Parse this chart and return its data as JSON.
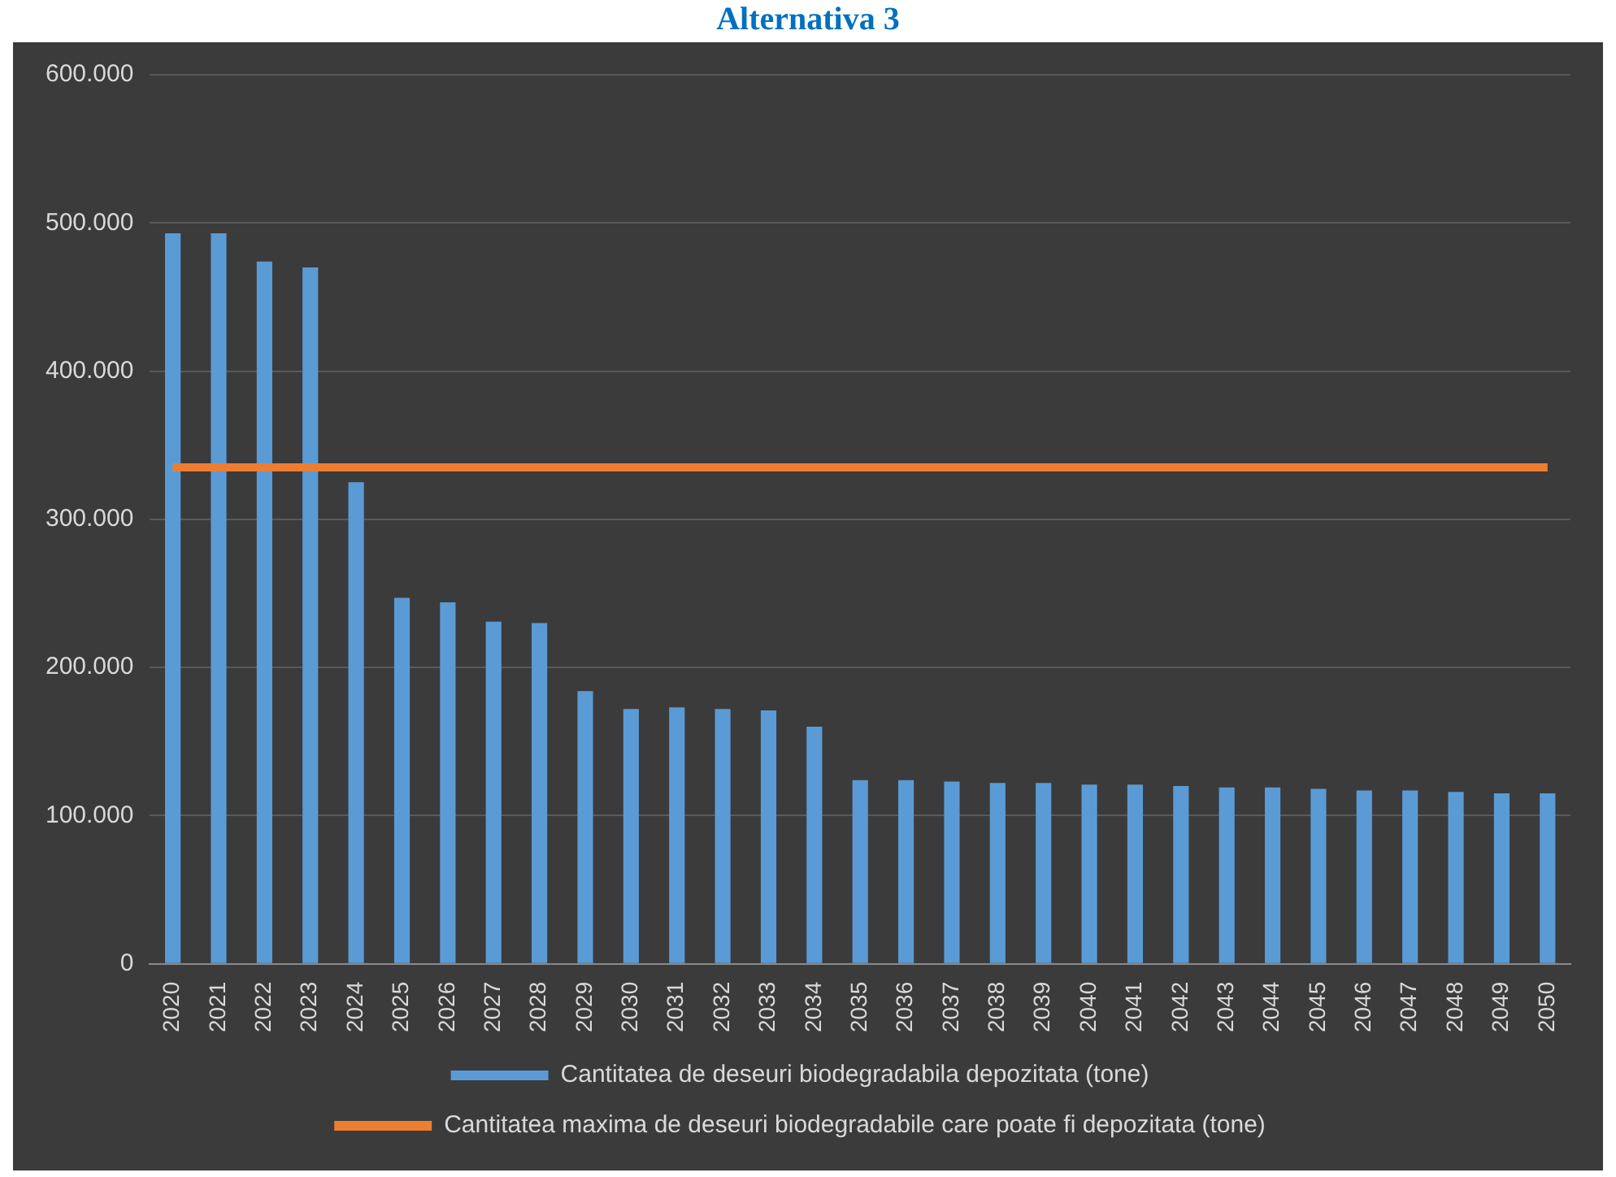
{
  "chart_data": {
    "type": "bar",
    "title": "Alternativa 3",
    "categories": [
      "2020",
      "2021",
      "2022",
      "2023",
      "2024",
      "2025",
      "2026",
      "2027",
      "2028",
      "2029",
      "2030",
      "2031",
      "2032",
      "2033",
      "2034",
      "2035",
      "2036",
      "2037",
      "2038",
      "2039",
      "2040",
      "2041",
      "2042",
      "2043",
      "2044",
      "2045",
      "2046",
      "2047",
      "2048",
      "2049",
      "2050"
    ],
    "series": [
      {
        "name": "Cantitatea de deseuri biodegradabila depozitata (tone)",
        "color": "#5b9bd5",
        "values": [
          493000,
          493000,
          474000,
          470000,
          325000,
          247000,
          244000,
          231000,
          230000,
          184000,
          172000,
          173000,
          172000,
          171000,
          160000,
          124000,
          124000,
          123000,
          122000,
          122000,
          121000,
          121000,
          120000,
          119000,
          119000,
          118000,
          117000,
          117000,
          116000,
          115000,
          115000
        ]
      },
      {
        "name": "Cantitatea maxima de deseuri biodegradabile care poate fi depozitata (tone)",
        "type": "line",
        "color": "#ed7d31",
        "values": [
          335000,
          335000,
          335000,
          335000,
          335000,
          335000,
          335000,
          335000,
          335000,
          335000,
          335000,
          335000,
          335000,
          335000,
          335000,
          335000,
          335000,
          335000,
          335000,
          335000,
          335000,
          335000,
          335000,
          335000,
          335000,
          335000,
          335000,
          335000,
          335000,
          335000,
          335000
        ]
      }
    ],
    "ylim": [
      0,
      600000
    ],
    "yticks": [
      0,
      {
        "value": 100000,
        "label": "100.000"
      },
      {
        "value": 200000,
        "label": "200.000"
      },
      {
        "value": 300000,
        "label": "300.000"
      },
      {
        "value": 400000,
        "label": "400.000"
      },
      {
        "value": 500000,
        "label": "500.000"
      },
      {
        "value": 600000,
        "label": "600.000"
      }
    ],
    "grid": "y",
    "legend": "bottom",
    "marker": "none"
  }
}
